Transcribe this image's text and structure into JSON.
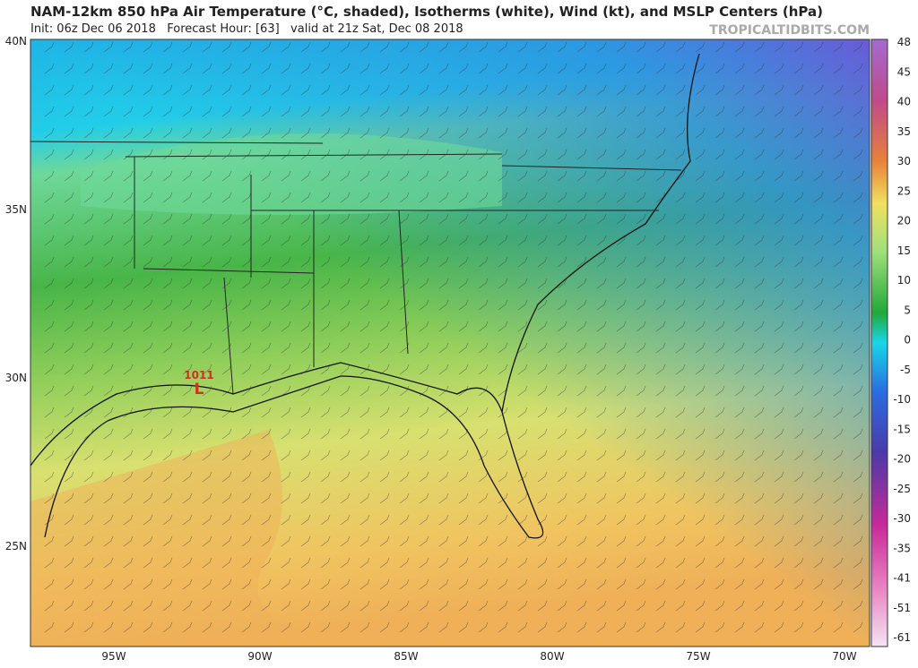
{
  "header": {
    "title": "NAM-12km 850 hPa Air Temperature (°C, shaded), Isotherms (white), Wind (kt), and MSLP Centers (hPa)",
    "subtitle": "Init: 06z Dec 06 2018   Forecast Hour: [63]   valid at 21z Sat, Dec 08 2018",
    "brand": "TROPICALTIDBITS.COM"
  },
  "map": {
    "lat_labels": [
      "40N",
      "35N",
      "30N",
      "25N"
    ],
    "lon_labels": [
      "95W",
      "90W",
      "85W",
      "80W",
      "75W",
      "70W"
    ],
    "pressure_center": {
      "value": "1011",
      "symbol": "L"
    }
  },
  "colorbar": {
    "labels": [
      48,
      45,
      40,
      35,
      30,
      25,
      20,
      15,
      10,
      5,
      0,
      -5,
      -10,
      -15,
      -20,
      -25,
      -30,
      -35,
      -41,
      -51,
      -61
    ]
  }
}
